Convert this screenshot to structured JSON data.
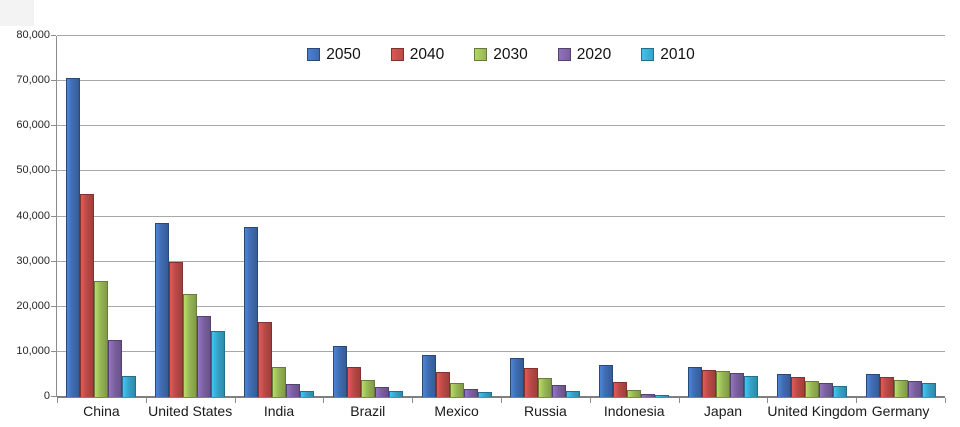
{
  "chart_data": {
    "type": "bar",
    "title": "",
    "xlabel": "",
    "ylabel": "",
    "ylim": [
      0,
      80000
    ],
    "ytick_interval": 10000,
    "ytick_labels": [
      "0",
      "10,000",
      "20,000",
      "30,000",
      "40,000",
      "50,000",
      "60,000",
      "70,000",
      "80,000"
    ],
    "grid": true,
    "legend_position": "top-center",
    "axis_color": "#8c8c8c",
    "gridline_color": "#a8a8a8",
    "categories": [
      "China",
      "United States",
      "India",
      "Brazil",
      "Mexico",
      "Russia",
      "Indonesia",
      "Japan",
      "United Kingdom",
      "Germany"
    ],
    "series": [
      {
        "name": "2050",
        "color": "#3f6cb1",
        "values": [
          70710,
          38514,
          37668,
          11366,
          9340,
          8580,
          7010,
          6677,
          5133,
          5024
        ]
      },
      {
        "name": "2040",
        "color": "#bb4a47",
        "values": [
          45022,
          29823,
          16510,
          6631,
          5471,
          6320,
          3286,
          6042,
          4344,
          4388
        ]
      },
      {
        "name": "2030",
        "color": "#97b655",
        "values": [
          25610,
          22817,
          6683,
          3720,
          3068,
          4265,
          1479,
          5814,
          3595,
          3761
        ]
      },
      {
        "name": "2020",
        "color": "#7b60a0",
        "values": [
          12630,
          17978,
          2848,
          2194,
          1742,
          2554,
          752,
          5224,
          3101,
          3519
        ]
      },
      {
        "name": "2010",
        "color": "#36a3c8",
        "values": [
          4667,
          14535,
          1256,
          1346,
          1009,
          1371,
          419,
          4604,
          2546,
          3083
        ]
      }
    ]
  }
}
